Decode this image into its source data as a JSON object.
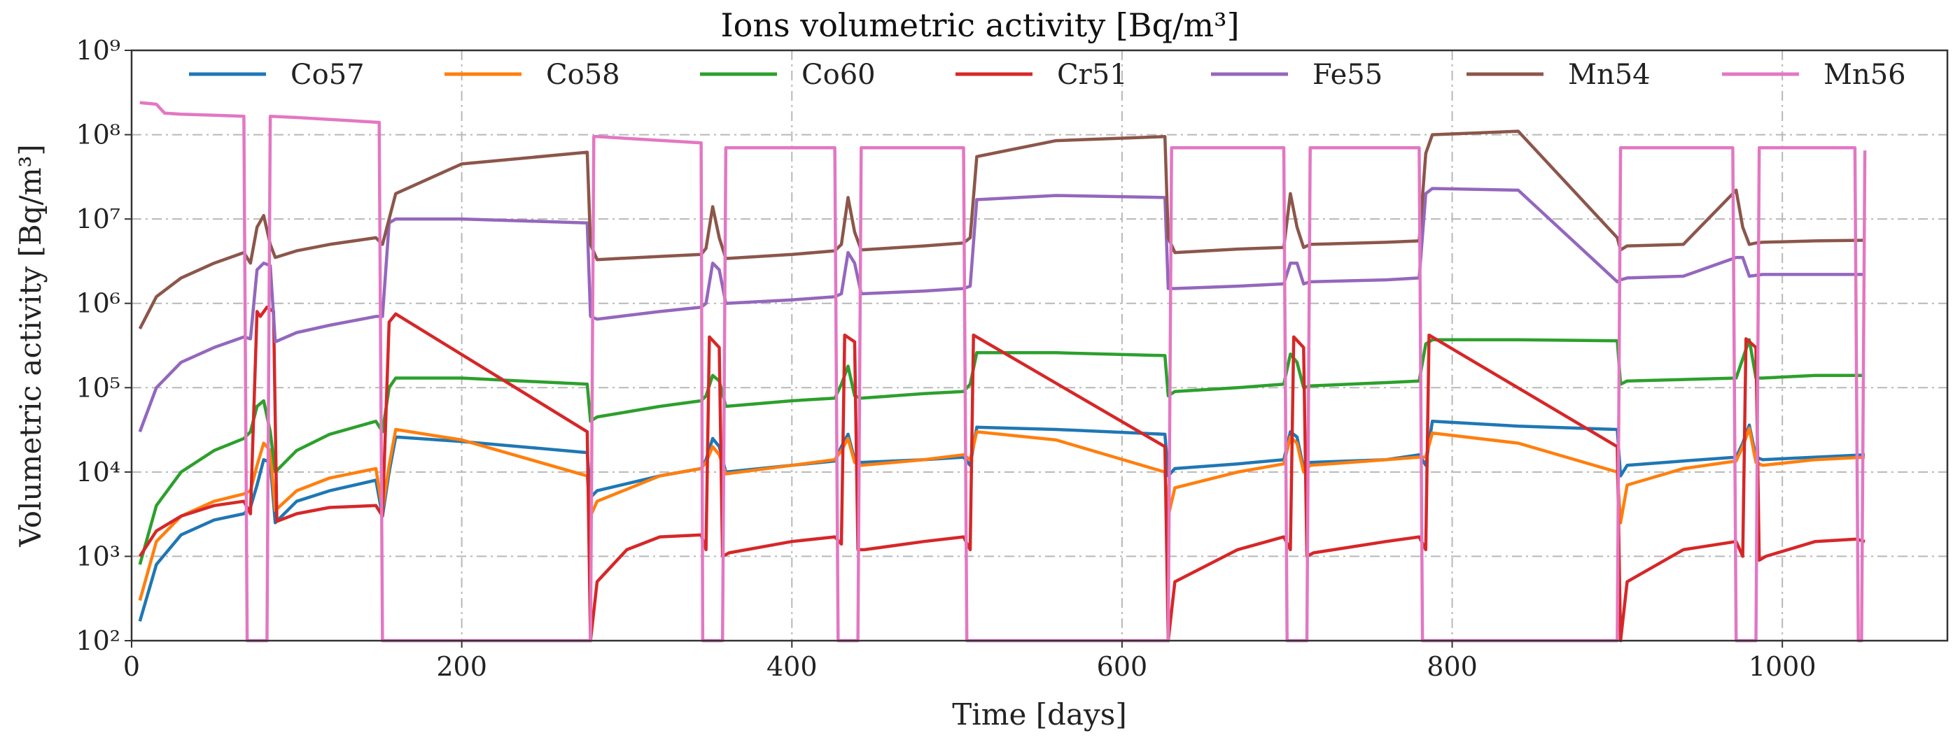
{
  "chart_data": {
    "type": "line",
    "title": "Ions volumetric activity [Bq/m³]",
    "xlabel": "Time [days]",
    "ylabel": "Volumetric activity [Bq/m³]",
    "yscale": "log",
    "xlim": [
      0,
      1100
    ],
    "ylim": [
      100,
      1000000000
    ],
    "xticks": [
      0,
      200,
      400,
      600,
      800,
      1000
    ],
    "xtick_labels": [
      "0",
      "200",
      "400",
      "600",
      "800",
      "1000"
    ],
    "yticks": [
      100,
      1000,
      10000,
      100000,
      1000000,
      10000000,
      100000000,
      1000000000
    ],
    "ytick_labels": [
      "10²",
      "10³",
      "10⁴",
      "10⁵",
      "10⁶",
      "10⁷",
      "10⁸",
      "10⁹"
    ],
    "grid": true,
    "legend_position": "top",
    "series": [
      {
        "name": "Co57",
        "color": "#1f77b4",
        "x": [
          5,
          15,
          30,
          50,
          68,
          72,
          76,
          80,
          84,
          87,
          100,
          120,
          148,
          152,
          156,
          160,
          200,
          276,
          278,
          282,
          320,
          345,
          348,
          352,
          356,
          360,
          400,
          426,
          430,
          434,
          438,
          442,
          480,
          504,
          508,
          512,
          560,
          626,
          628,
          632,
          670,
          698,
          702,
          706,
          710,
          714,
          760,
          780,
          784,
          788,
          840,
          900,
          902,
          906,
          940,
          972,
          976,
          980,
          984,
          988,
          1020,
          1050
        ],
        "y": [
          170,
          800,
          1800,
          2700,
          3200,
          3800,
          7000,
          14000,
          13000,
          2500,
          4500,
          6000,
          8000,
          3000,
          10000,
          26000,
          23000,
          17000,
          5000,
          6000,
          9000,
          11000,
          14000,
          25000,
          20000,
          10000,
          12000,
          13500,
          20000,
          28000,
          14000,
          13000,
          14000,
          15000,
          12000,
          34000,
          32000,
          28000,
          9000,
          11000,
          12500,
          14000,
          30000,
          26000,
          11000,
          13000,
          14000,
          16000,
          12000,
          40000,
          35000,
          32000,
          9000,
          12000,
          13500,
          15000,
          22000,
          36000,
          15000,
          14000,
          15000,
          16000
        ]
      },
      {
        "name": "Co58",
        "color": "#ff7f0e",
        "x": [
          5,
          15,
          30,
          50,
          68,
          72,
          76,
          80,
          84,
          87,
          100,
          120,
          148,
          152,
          156,
          160,
          200,
          276,
          278,
          282,
          320,
          345,
          348,
          352,
          356,
          360,
          400,
          426,
          430,
          434,
          438,
          442,
          480,
          504,
          508,
          512,
          560,
          626,
          628,
          632,
          670,
          698,
          702,
          706,
          710,
          714,
          760,
          780,
          784,
          788,
          840,
          900,
          902,
          906,
          940,
          972,
          976,
          980,
          984,
          988,
          1020,
          1050
        ],
        "y": [
          300,
          1500,
          3000,
          4500,
          5500,
          6000,
          12000,
          22000,
          18000,
          3500,
          6000,
          8500,
          11000,
          3500,
          12000,
          32000,
          24000,
          9000,
          3000,
          4500,
          9000,
          11000,
          13000,
          20000,
          16000,
          9500,
          12000,
          14000,
          18000,
          25000,
          13000,
          12000,
          14000,
          16000,
          14000,
          30000,
          24000,
          10000,
          3000,
          6500,
          10000,
          12500,
          26000,
          22000,
          10000,
          12000,
          14000,
          15000,
          15000,
          29000,
          22000,
          10000,
          2500,
          7000,
          11000,
          13500,
          20000,
          33000,
          13000,
          12000,
          14000,
          15000
        ]
      },
      {
        "name": "Co60",
        "color": "#2ca02c",
        "x": [
          5,
          15,
          30,
          50,
          68,
          72,
          76,
          80,
          84,
          87,
          100,
          120,
          148,
          152,
          156,
          160,
          200,
          276,
          278,
          282,
          320,
          345,
          348,
          352,
          356,
          360,
          400,
          426,
          430,
          434,
          438,
          442,
          480,
          504,
          508,
          512,
          560,
          626,
          628,
          632,
          670,
          698,
          702,
          706,
          710,
          714,
          760,
          780,
          784,
          788,
          840,
          900,
          902,
          906,
          940,
          972,
          976,
          980,
          984,
          988,
          1020,
          1050
        ],
        "y": [
          800,
          4000,
          10000,
          18000,
          25000,
          30000,
          60000,
          70000,
          30000,
          10000,
          18000,
          28000,
          40000,
          30000,
          100000,
          130000,
          130000,
          110000,
          40000,
          45000,
          60000,
          70000,
          80000,
          140000,
          120000,
          60000,
          70000,
          75000,
          110000,
          180000,
          80000,
          75000,
          85000,
          90000,
          110000,
          260000,
          260000,
          240000,
          80000,
          90000,
          100000,
          110000,
          250000,
          200000,
          100000,
          105000,
          115000,
          120000,
          330000,
          370000,
          370000,
          360000,
          110000,
          120000,
          125000,
          130000,
          220000,
          370000,
          130000,
          130000,
          140000,
          140000
        ]
      },
      {
        "name": "Cr51",
        "color": "#d62728",
        "x": [
          5,
          15,
          30,
          50,
          68,
          72,
          76,
          78,
          82,
          86,
          88,
          100,
          120,
          148,
          152,
          156,
          160,
          276,
          278,
          282,
          300,
          320,
          345,
          348,
          350,
          356,
          358,
          362,
          400,
          426,
          430,
          432,
          438,
          440,
          444,
          480,
          504,
          508,
          510,
          626,
          628,
          632,
          670,
          698,
          702,
          704,
          710,
          712,
          716,
          760,
          780,
          784,
          786,
          900,
          902,
          906,
          940,
          972,
          976,
          978,
          984,
          986,
          990,
          1020,
          1045,
          1050
        ],
        "y": [
          1000,
          2000,
          3000,
          4000,
          4500,
          3200,
          800000,
          700000,
          900000,
          800000,
          2600,
          3200,
          3800,
          4000,
          3000,
          600000,
          750000,
          30000,
          100,
          500,
          1200,
          1700,
          1800,
          1200,
          400000,
          300000,
          1000,
          1100,
          1500,
          1700,
          1400,
          420000,
          350000,
          1200,
          1200,
          1500,
          1700,
          1200,
          420000,
          20000,
          100,
          500,
          1200,
          1700,
          1200,
          400000,
          300000,
          1000,
          1100,
          1500,
          1700,
          1200,
          420000,
          20000,
          100,
          500,
          1200,
          1500,
          1000,
          380000,
          300000,
          900,
          1000,
          1500,
          1600,
          1500
        ]
      },
      {
        "name": "Fe55",
        "color": "#9467bd",
        "x": [
          5,
          15,
          30,
          50,
          68,
          72,
          76,
          80,
          84,
          87,
          100,
          120,
          148,
          152,
          156,
          160,
          200,
          276,
          278,
          282,
          320,
          345,
          348,
          352,
          356,
          360,
          400,
          426,
          430,
          434,
          438,
          442,
          480,
          504,
          508,
          512,
          560,
          626,
          628,
          632,
          670,
          698,
          702,
          706,
          710,
          714,
          760,
          780,
          784,
          788,
          840,
          900,
          902,
          906,
          940,
          972,
          976,
          980,
          984,
          988,
          1020,
          1050
        ],
        "y": [
          30000,
          100000,
          200000,
          300000,
          400000,
          380000,
          2500000,
          3000000,
          2800000,
          350000,
          450000,
          550000,
          700000,
          700000,
          9000000,
          10000000,
          10000000,
          9000000,
          700000,
          650000,
          800000,
          900000,
          1000000,
          3000000,
          2500000,
          1000000,
          1100000,
          1200000,
          1300000,
          4000000,
          3000000,
          1300000,
          1400000,
          1500000,
          1600000,
          17000000,
          19000000,
          18000000,
          1500000,
          1500000,
          1600000,
          1700000,
          3000000,
          3000000,
          1700000,
          1800000,
          1900000,
          2000000,
          20000000,
          23000000,
          22000000,
          1800000,
          1900000,
          2000000,
          2100000,
          3500000,
          3500000,
          2100000,
          2150000,
          2200000,
          2200000,
          2200000
        ]
      },
      {
        "name": "Mn54",
        "color": "#8c564b",
        "x": [
          5,
          15,
          30,
          50,
          68,
          72,
          76,
          80,
          84,
          87,
          100,
          120,
          148,
          152,
          156,
          160,
          200,
          276,
          278,
          282,
          320,
          345,
          348,
          352,
          356,
          360,
          400,
          426,
          430,
          434,
          438,
          442,
          480,
          504,
          508,
          512,
          560,
          626,
          628,
          632,
          670,
          698,
          702,
          706,
          710,
          714,
          760,
          780,
          784,
          788,
          840,
          900,
          902,
          906,
          940,
          972,
          976,
          980,
          984,
          988,
          1020,
          1050
        ],
        "y": [
          500000,
          1200000,
          2000000,
          3000000,
          4000000,
          3000000,
          8000000,
          11000000,
          5000000,
          3500000,
          4200000,
          5000000,
          6000000,
          5000000,
          10000000,
          20000000,
          45000000,
          62000000,
          5000000,
          3300000,
          3600000,
          3800000,
          4500000,
          14000000,
          6000000,
          3400000,
          3800000,
          4200000,
          5000000,
          18000000,
          7000000,
          4300000,
          4800000,
          5200000,
          6000000,
          55000000,
          85000000,
          95000000,
          6000000,
          4000000,
          4400000,
          4600000,
          20000000,
          8000000,
          4600000,
          5000000,
          5300000,
          5500000,
          60000000,
          100000000,
          110000000,
          6000000,
          4300000,
          4800000,
          5000000,
          22000000,
          8000000,
          5000000,
          5200000,
          5300000,
          5500000,
          5600000
        ]
      },
      {
        "name": "Mn56",
        "color": "#e377c2",
        "x": [
          5,
          15,
          20,
          30,
          50,
          68,
          70,
          72,
          82,
          84,
          100,
          150,
          152,
          154,
          278,
          280,
          282,
          345,
          346,
          348,
          358,
          360,
          426,
          428,
          430,
          440,
          442,
          504,
          506,
          508,
          628,
          630,
          632,
          698,
          700,
          702,
          712,
          714,
          780,
          782,
          784,
          900,
          902,
          904,
          970,
          972,
          974,
          984,
          986,
          1044,
          1046,
          1048,
          1050
        ],
        "y": [
          240000000,
          230000000,
          180000000,
          175000000,
          170000000,
          165000000,
          100,
          100,
          100,
          165000000,
          160000000,
          140000000,
          100,
          100,
          100,
          95000000,
          95000000,
          80000000,
          100,
          100,
          100,
          70000000,
          70000000,
          100,
          100,
          100,
          70000000,
          70000000,
          100,
          100,
          100,
          70000000,
          70000000,
          70000000,
          100,
          100,
          100,
          70000000,
          70000000,
          100,
          100,
          100,
          70000000,
          70000000,
          70000000,
          100,
          100,
          100,
          70000000,
          70000000,
          100,
          100,
          65000000
        ]
      }
    ]
  }
}
